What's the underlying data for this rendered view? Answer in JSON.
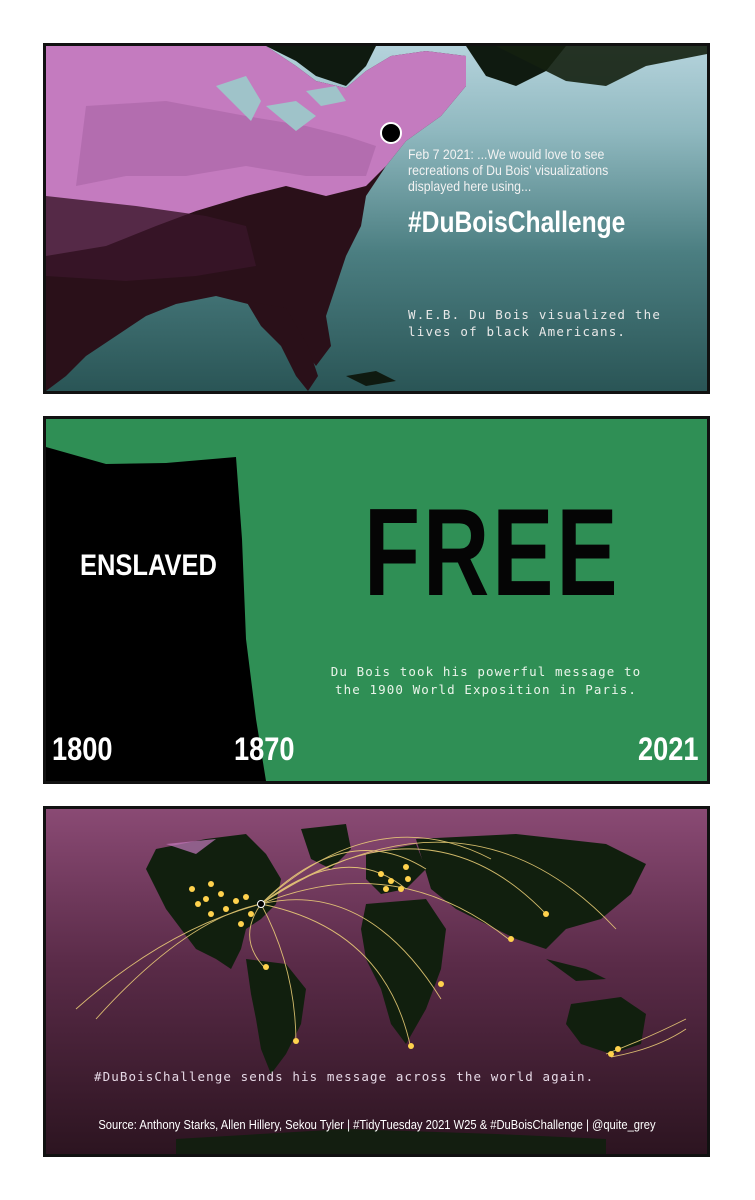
{
  "panel1": {
    "quote": "Feb 7 2021: ...We would love to see recreations of Du Bois' visualizations displayed here using...",
    "hashtag": "#DuBoisChallenge",
    "note": "W.E.B. Du Bois visualized the lives of black Americans."
  },
  "panel2": {
    "label_enslaved": "ENSLAVED",
    "label_free": "FREE",
    "note": "Du Bois took his powerful message to the 1900 World Exposition in Paris.",
    "years": [
      "1800",
      "1870",
      "2021"
    ]
  },
  "panel3": {
    "note": "#DuBoisChallenge sends his message across the world again.",
    "source": "Source: Anthony Starks, Allen Hillery, Sekou Tyler  |  #TidyTuesday 2021 W25 & #DuBoisChallenge  |  @quite_grey"
  },
  "colors": {
    "green": "#2f8f55",
    "pink_map": "#c47bbf",
    "dark_map": "#2a1019",
    "arc": "#f3d57a"
  }
}
